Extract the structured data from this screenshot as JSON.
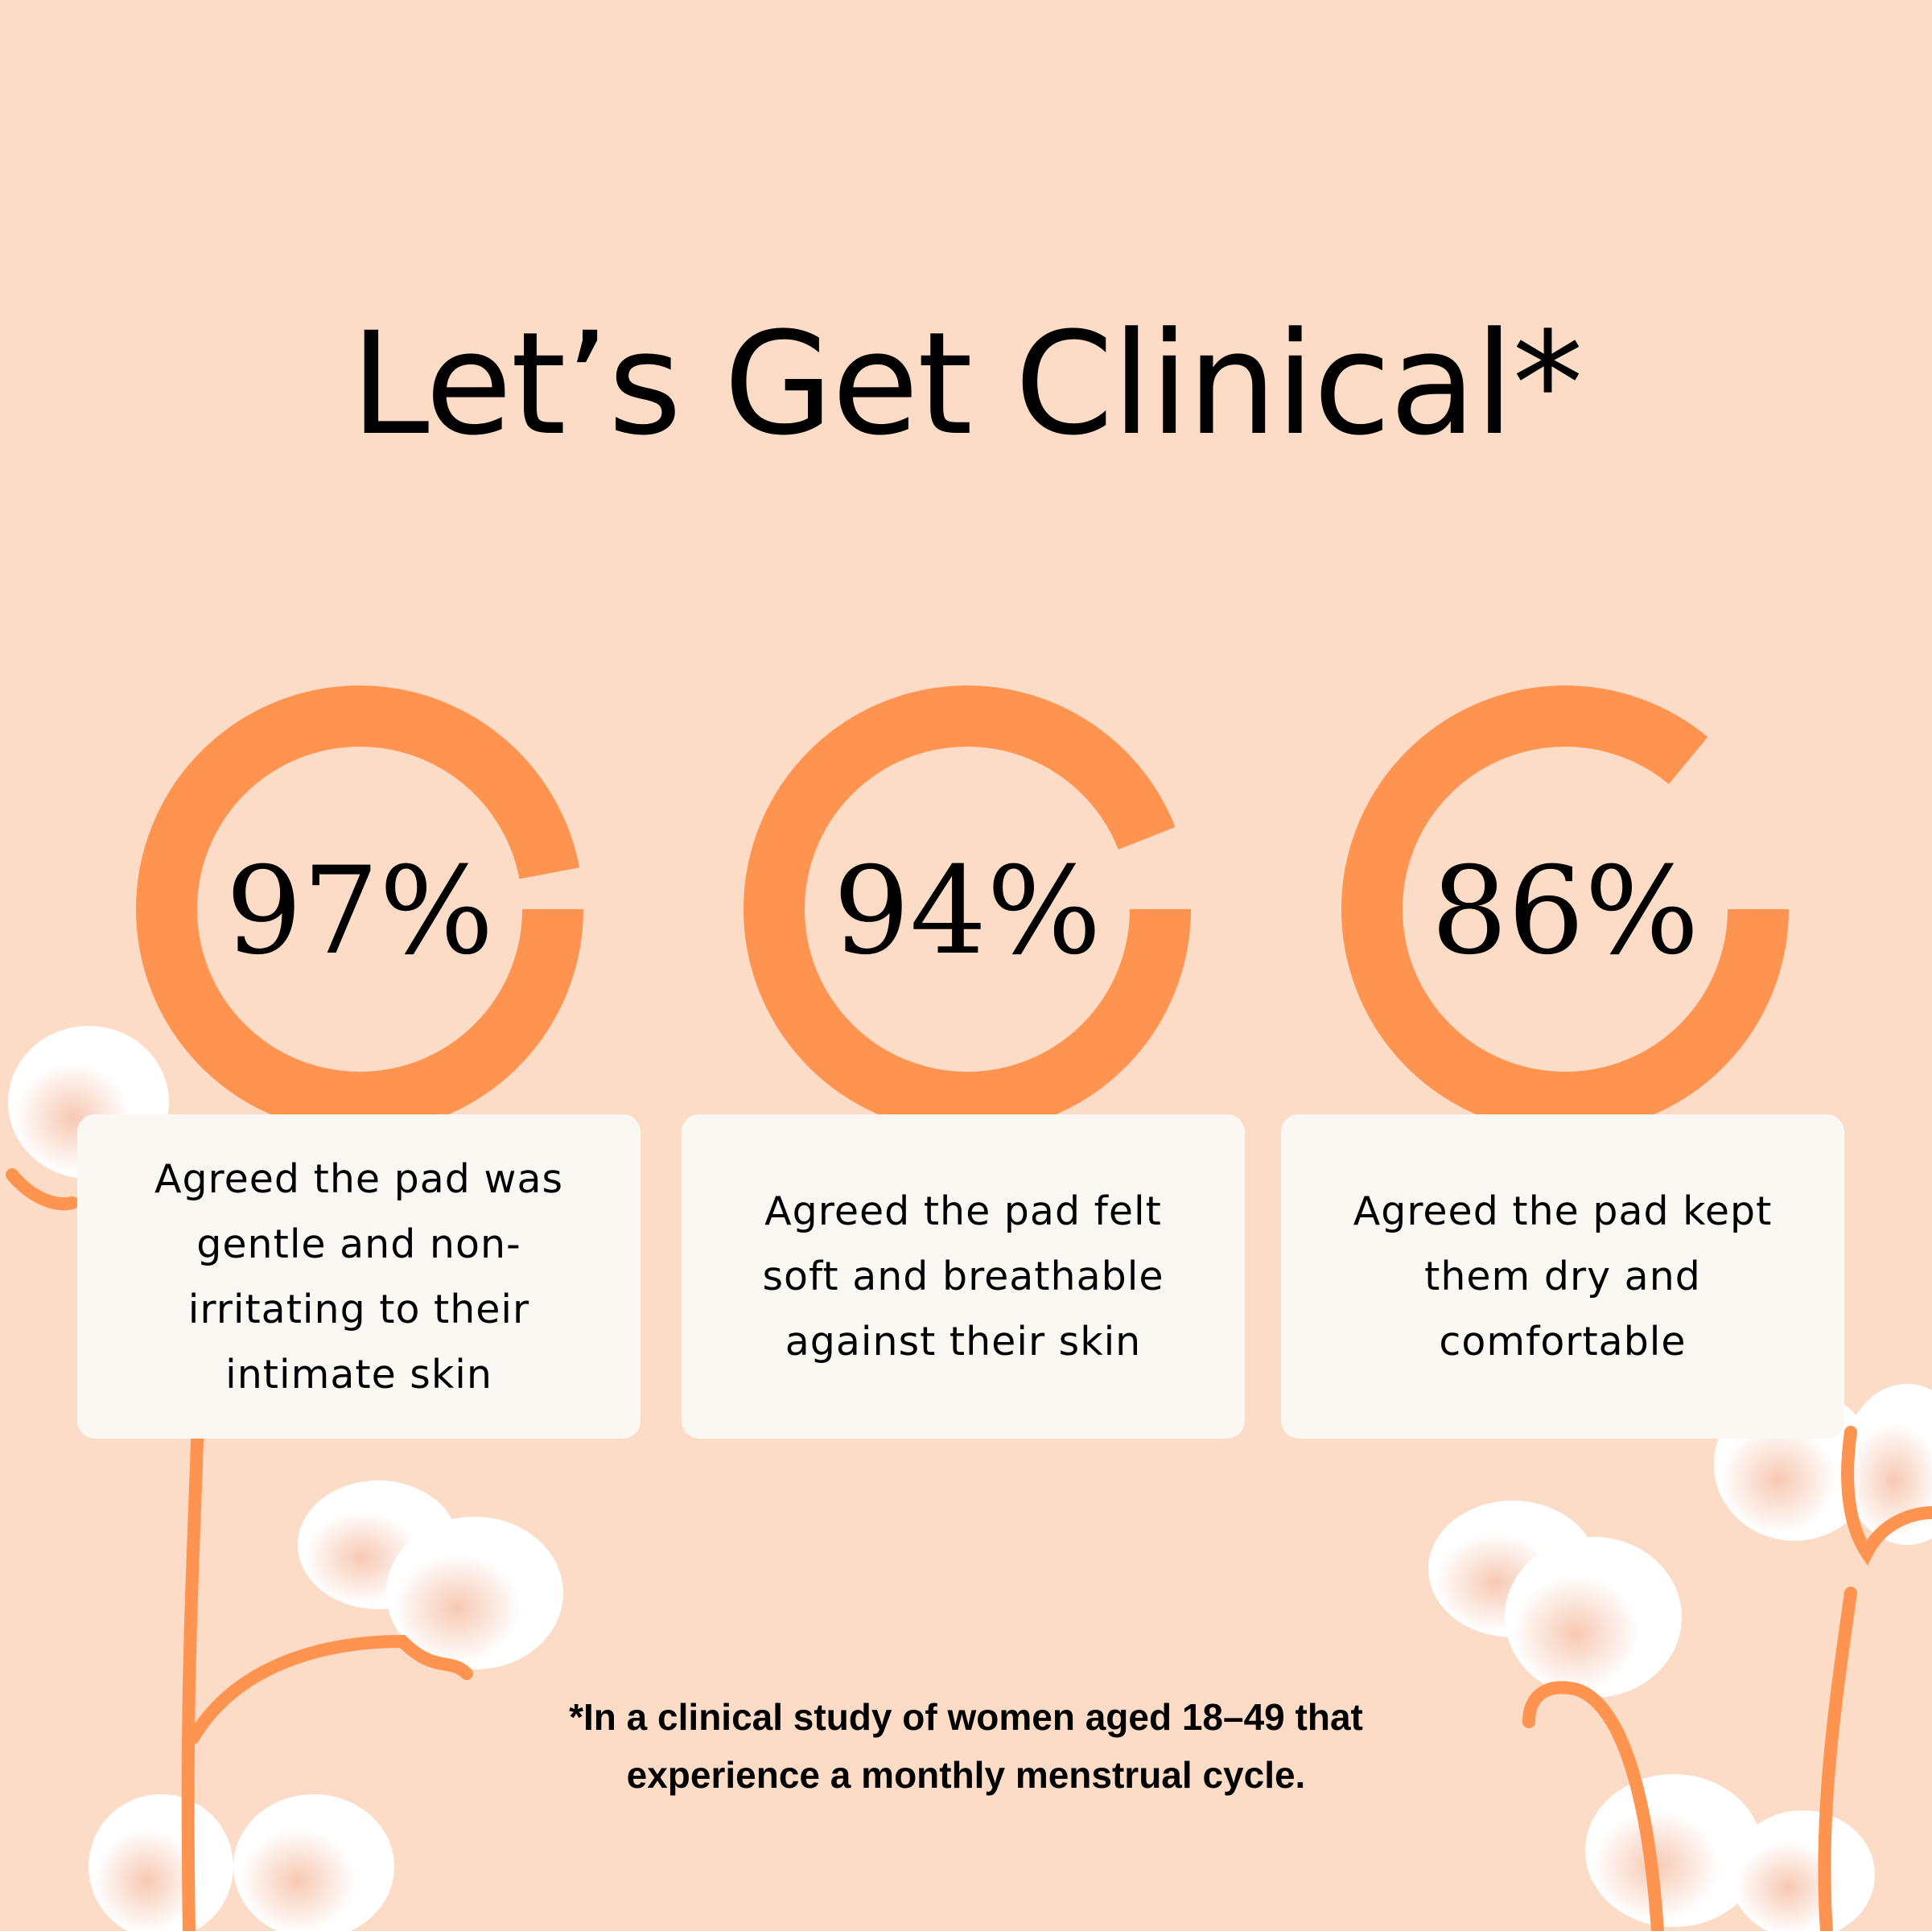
{
  "title": "Let’s Get Clinical*",
  "colors": {
    "background": "#fddcc7",
    "accent": "#ff9350",
    "card": "#fbf8f3",
    "text": "#000000"
  },
  "stats": [
    {
      "value": 97,
      "label": "97%",
      "description": "Agreed the pad was gentle and non-irritating to their intimate skin"
    },
    {
      "value": 94,
      "label": "94%",
      "description": "Agreed the pad felt soft and breathable against their skin"
    },
    {
      "value": 86,
      "label": "86%",
      "description": "Agreed the pad kept them dry and comfortable"
    }
  ],
  "footnote": {
    "line1": "*In a clinical study of women aged 18–49 that",
    "line2": "experience a monthly menstrual cycle."
  },
  "decorations": [
    "cotton-flower-icon"
  ]
}
